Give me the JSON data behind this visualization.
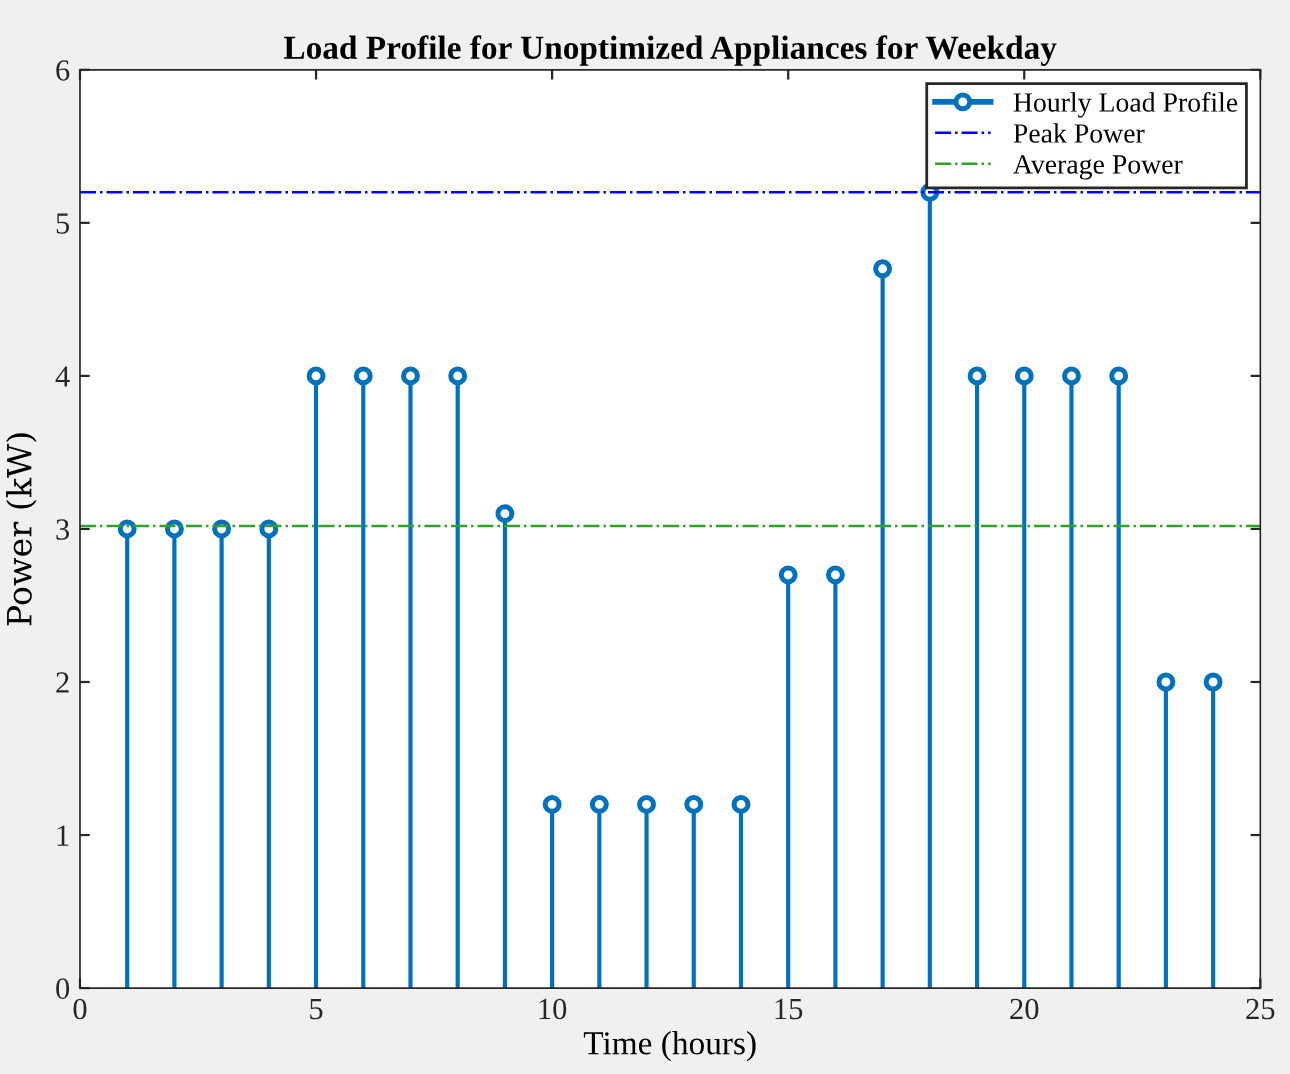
{
  "chart_data": {
    "type": "lollipop",
    "title": "Load Profile for Unoptimized Appliances for Weekday",
    "xlabel": "Time (hours)",
    "ylabel": "Power (kW)",
    "x": [
      1,
      2,
      3,
      4,
      5,
      6,
      7,
      8,
      9,
      10,
      11,
      12,
      13,
      14,
      15,
      16,
      17,
      18,
      19,
      20,
      21,
      22,
      23,
      24
    ],
    "series": [
      {
        "name": "Hourly Load Profile",
        "color": "#0072bd",
        "values": [
          3,
          3,
          3,
          3,
          4,
          4,
          4,
          4,
          3.1,
          1.2,
          1.2,
          1.2,
          1.2,
          1.2,
          2.7,
          2.7,
          4.7,
          5.2,
          4,
          4,
          4,
          4,
          2,
          2
        ]
      }
    ],
    "ref_lines": [
      {
        "axis": "y",
        "value": 5.2,
        "label": "Peak Power",
        "color": "#0000ff",
        "line_style": "dashdot"
      },
      {
        "axis": "y",
        "value": 3.02,
        "label": "Average Power",
        "color": "#33a02c",
        "line_style": "dashdot"
      }
    ],
    "xlim": [
      0,
      25
    ],
    "xticks": [
      0,
      5,
      10,
      15,
      20,
      25
    ],
    "ylim": [
      0,
      6
    ],
    "yticks": [
      0,
      1,
      2,
      3,
      4,
      5,
      6
    ],
    "marker": "circle",
    "grid": false,
    "legend": "top right"
  }
}
